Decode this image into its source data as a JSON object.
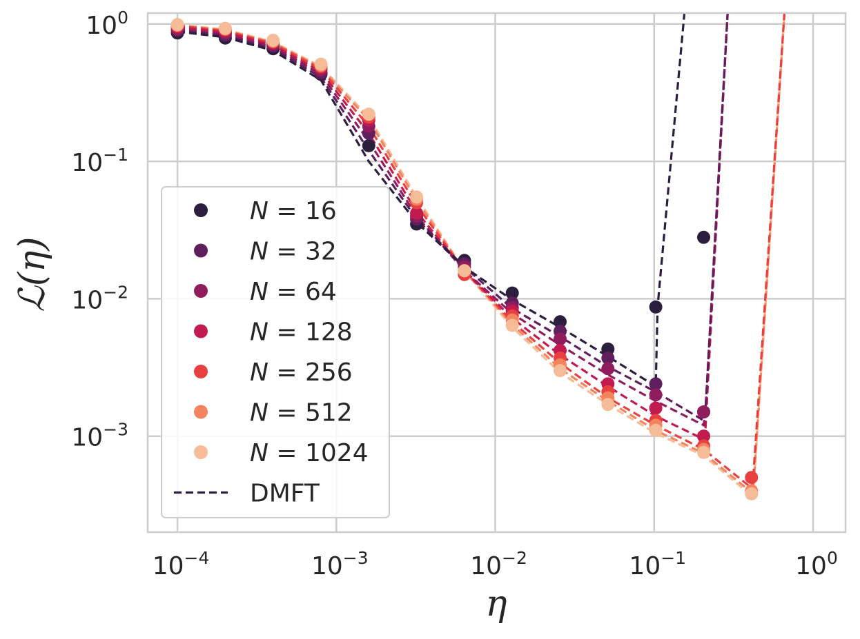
{
  "chart_data": {
    "type": "scatter",
    "xscale": "log",
    "yscale": "log",
    "xlabel": "η",
    "ylabel": "ℒ(η)",
    "xlim": [
      6.5e-05,
      1.6
    ],
    "ylim": [
      0.0002,
      1.2
    ],
    "grid": true,
    "legend_position": "lower-left",
    "x_ticks": [
      {
        "value": 0.0001,
        "base": "10",
        "exp": "−4"
      },
      {
        "value": 0.001,
        "base": "10",
        "exp": "−3"
      },
      {
        "value": 0.01,
        "base": "10",
        "exp": "−2"
      },
      {
        "value": 0.1,
        "base": "10",
        "exp": "−1"
      },
      {
        "value": 1,
        "base": "10",
        "exp": "0"
      }
    ],
    "y_ticks": [
      {
        "value": 1,
        "base": "10",
        "exp": "0"
      },
      {
        "value": 0.1,
        "base": "10",
        "exp": "−1"
      },
      {
        "value": 0.01,
        "base": "10",
        "exp": "−2"
      },
      {
        "value": 0.001,
        "base": "10",
        "exp": "−3"
      }
    ],
    "series": [
      {
        "name": "N = 16",
        "N": "16",
        "color": "#2c1e3d",
        "points": [
          [
            0.0001,
            0.86
          ],
          [
            0.0002,
            0.79
          ],
          [
            0.0004,
            0.66
          ],
          [
            0.0008,
            0.43
          ],
          [
            0.0016,
            0.13
          ],
          [
            0.0032,
            0.035
          ],
          [
            0.0064,
            0.019
          ],
          [
            0.0128,
            0.011
          ],
          [
            0.0256,
            0.0068
          ],
          [
            0.0512,
            0.0043
          ],
          [
            0.1024,
            0.0087
          ],
          [
            0.2048,
            0.028
          ]
        ],
        "dmft": [
          [
            0.0001,
            0.88
          ],
          [
            0.0002,
            0.8
          ],
          [
            0.0004,
            0.64
          ],
          [
            0.0008,
            0.39
          ],
          [
            0.0016,
            0.1
          ],
          [
            0.0032,
            0.036
          ],
          [
            0.0064,
            0.017
          ],
          [
            0.0128,
            0.0098
          ],
          [
            0.0256,
            0.0062
          ],
          [
            0.0512,
            0.0038
          ],
          [
            0.1024,
            0.0023
          ],
          [
            0.1051,
            0.0087
          ],
          [
            0.155,
            1.2
          ]
        ]
      },
      {
        "name": "N = 32",
        "N": "32",
        "color": "#5f1e5c",
        "points": [
          [
            0.0001,
            0.9
          ],
          [
            0.0002,
            0.83
          ],
          [
            0.0004,
            0.69
          ],
          [
            0.0008,
            0.44
          ],
          [
            0.0016,
            0.16
          ],
          [
            0.0032,
            0.038
          ],
          [
            0.0064,
            0.018
          ],
          [
            0.0128,
            0.0093
          ],
          [
            0.0256,
            0.0058
          ],
          [
            0.0512,
            0.0037
          ],
          [
            0.1024,
            0.0024
          ],
          [
            0.2048,
            0.0015
          ]
        ],
        "dmft": [
          [
            0.0001,
            0.9
          ],
          [
            0.0002,
            0.82
          ],
          [
            0.0004,
            0.66
          ],
          [
            0.0008,
            0.41
          ],
          [
            0.0016,
            0.12
          ],
          [
            0.0032,
            0.038
          ],
          [
            0.0064,
            0.017
          ],
          [
            0.0128,
            0.0085
          ],
          [
            0.0256,
            0.0053
          ],
          [
            0.0512,
            0.0032
          ],
          [
            0.1024,
            0.0021
          ],
          [
            0.2048,
            0.0013
          ],
          [
            0.21,
            0.0015
          ],
          [
            0.29,
            1.2
          ]
        ]
      },
      {
        "name": "N = 64",
        "N": "64",
        "color": "#8f1d5e",
        "points": [
          [
            0.0001,
            0.92
          ],
          [
            0.0002,
            0.86
          ],
          [
            0.0004,
            0.71
          ],
          [
            0.0008,
            0.46
          ],
          [
            0.0016,
            0.18
          ],
          [
            0.0032,
            0.04
          ],
          [
            0.0064,
            0.017
          ],
          [
            0.0128,
            0.0086
          ],
          [
            0.0256,
            0.0051
          ],
          [
            0.0512,
            0.0031
          ],
          [
            0.1024,
            0.002
          ],
          [
            0.2048,
            0.0015
          ]
        ],
        "dmft": [
          [
            0.0001,
            0.92
          ],
          [
            0.0002,
            0.84
          ],
          [
            0.0004,
            0.68
          ],
          [
            0.0008,
            0.43
          ],
          [
            0.0016,
            0.14
          ],
          [
            0.0032,
            0.04
          ],
          [
            0.0064,
            0.016
          ],
          [
            0.0128,
            0.0078
          ],
          [
            0.0256,
            0.0046
          ],
          [
            0.0512,
            0.0028
          ],
          [
            0.1024,
            0.0018
          ],
          [
            0.2048,
            0.0012
          ],
          [
            0.21,
            0.0015
          ],
          [
            0.29,
            1.2
          ]
        ]
      },
      {
        "name": "N = 128",
        "N": "128",
        "color": "#c11a4e",
        "points": [
          [
            0.0001,
            0.95
          ],
          [
            0.0002,
            0.89
          ],
          [
            0.0004,
            0.73
          ],
          [
            0.0008,
            0.48
          ],
          [
            0.0016,
            0.2
          ],
          [
            0.0032,
            0.042
          ],
          [
            0.0064,
            0.016
          ],
          [
            0.0128,
            0.0081
          ],
          [
            0.0256,
            0.0042
          ],
          [
            0.0512,
            0.0024
          ],
          [
            0.1024,
            0.0016
          ],
          [
            0.2048,
            0.001
          ]
        ],
        "dmft": [
          [
            0.0001,
            0.95
          ],
          [
            0.0002,
            0.87
          ],
          [
            0.0004,
            0.7
          ],
          [
            0.0008,
            0.45
          ],
          [
            0.0016,
            0.16
          ],
          [
            0.0032,
            0.043
          ],
          [
            0.0064,
            0.016
          ],
          [
            0.0128,
            0.0072
          ],
          [
            0.0256,
            0.0039
          ],
          [
            0.0512,
            0.0023
          ],
          [
            0.1024,
            0.0014
          ],
          [
            0.2048,
            0.00095
          ],
          [
            0.21,
            0.0011
          ],
          [
            0.29,
            1.2
          ]
        ]
      },
      {
        "name": "N = 256",
        "N": "256",
        "color": "#e83f3f",
        "points": [
          [
            0.0001,
            0.97
          ],
          [
            0.0002,
            0.91
          ],
          [
            0.0004,
            0.74
          ],
          [
            0.0008,
            0.49
          ],
          [
            0.0016,
            0.21
          ],
          [
            0.0032,
            0.05
          ],
          [
            0.0064,
            0.015
          ],
          [
            0.0128,
            0.0075
          ],
          [
            0.0256,
            0.0037
          ],
          [
            0.0512,
            0.0021
          ],
          [
            0.1024,
            0.0013
          ],
          [
            0.2048,
            0.00085
          ],
          [
            0.4096,
            0.0005
          ]
        ],
        "dmft": [
          [
            0.0001,
            0.97
          ],
          [
            0.0002,
            0.89
          ],
          [
            0.0004,
            0.72
          ],
          [
            0.0008,
            0.47
          ],
          [
            0.0016,
            0.18
          ],
          [
            0.0032,
            0.048
          ],
          [
            0.0064,
            0.016
          ],
          [
            0.0128,
            0.0068
          ],
          [
            0.0256,
            0.0034
          ],
          [
            0.0512,
            0.0019
          ],
          [
            0.1024,
            0.0012
          ],
          [
            0.2048,
            0.0008
          ],
          [
            0.4096,
            0.00042
          ],
          [
            0.42,
            0.0005
          ],
          [
            0.66,
            1.2
          ]
        ]
      },
      {
        "name": "N = 512",
        "N": "512",
        "color": "#f3845f",
        "points": [
          [
            0.0001,
            0.98
          ],
          [
            0.0002,
            0.92
          ],
          [
            0.0004,
            0.75
          ],
          [
            0.0008,
            0.5
          ],
          [
            0.0016,
            0.22
          ],
          [
            0.0032,
            0.053
          ],
          [
            0.0064,
            0.016
          ],
          [
            0.0128,
            0.007
          ],
          [
            0.0256,
            0.0033
          ],
          [
            0.0512,
            0.0019
          ],
          [
            0.1024,
            0.0012
          ],
          [
            0.2048,
            0.0008
          ],
          [
            0.4096,
            0.0004
          ]
        ],
        "dmft": [
          [
            0.0001,
            0.98
          ],
          [
            0.0002,
            0.9
          ],
          [
            0.0004,
            0.73
          ],
          [
            0.0008,
            0.48
          ],
          [
            0.0016,
            0.2
          ],
          [
            0.0032,
            0.052
          ],
          [
            0.0064,
            0.016
          ],
          [
            0.0128,
            0.0065
          ],
          [
            0.0256,
            0.0031
          ],
          [
            0.0512,
            0.0018
          ],
          [
            0.1024,
            0.0011
          ],
          [
            0.2048,
            0.00075
          ],
          [
            0.4096,
            0.00039
          ],
          [
            0.42,
            0.0004
          ],
          [
            0.66,
            1.2
          ]
        ]
      },
      {
        "name": "N = 1024",
        "N": "1024",
        "color": "#f6bb97",
        "points": [
          [
            0.0001,
            0.99
          ],
          [
            0.0002,
            0.93
          ],
          [
            0.0004,
            0.76
          ],
          [
            0.0008,
            0.51
          ],
          [
            0.0016,
            0.22
          ],
          [
            0.0032,
            0.055
          ],
          [
            0.0064,
            0.016
          ],
          [
            0.0128,
            0.0064
          ],
          [
            0.0256,
            0.003
          ],
          [
            0.0512,
            0.0017
          ],
          [
            0.1024,
            0.0011
          ],
          [
            0.2048,
            0.00076
          ],
          [
            0.4096,
            0.00038
          ]
        ],
        "dmft": [
          [
            0.0001,
            0.99
          ],
          [
            0.0002,
            0.91
          ],
          [
            0.0004,
            0.74
          ],
          [
            0.0008,
            0.49
          ],
          [
            0.0016,
            0.21
          ],
          [
            0.0032,
            0.055
          ],
          [
            0.0064,
            0.016
          ],
          [
            0.0128,
            0.0062
          ],
          [
            0.0256,
            0.0029
          ],
          [
            0.0512,
            0.0017
          ],
          [
            0.1024,
            0.00105
          ],
          [
            0.2048,
            0.00072
          ],
          [
            0.4096,
            0.00037
          ],
          [
            0.42,
            0.00038
          ],
          [
            0.66,
            1.2
          ]
        ]
      }
    ],
    "legend": {
      "entries": [
        {
          "label_math": "N",
          "label_rest": " = 16",
          "color": "#2c1e3d"
        },
        {
          "label_math": "N",
          "label_rest": " = 32",
          "color": "#5f1e5c"
        },
        {
          "label_math": "N",
          "label_rest": " = 64",
          "color": "#8f1d5e"
        },
        {
          "label_math": "N",
          "label_rest": " = 128",
          "color": "#c11a4e"
        },
        {
          "label_math": "N",
          "label_rest": " = 256",
          "color": "#e83f3f"
        },
        {
          "label_math": "N",
          "label_rest": " = 512",
          "color": "#f3845f"
        },
        {
          "label_math": "N",
          "label_rest": " = 1024",
          "color": "#f6bb97"
        }
      ],
      "dmft_label": "DMFT",
      "dmft_color": "#2c1e3d"
    }
  }
}
